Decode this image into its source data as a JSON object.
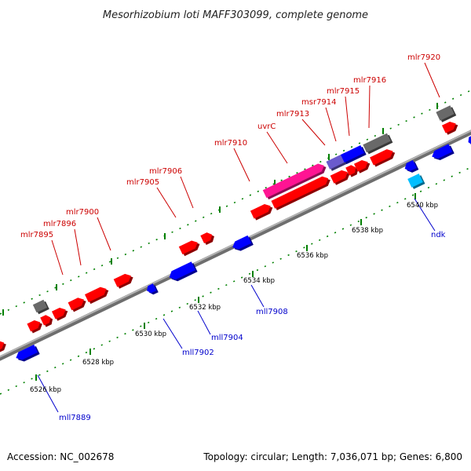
{
  "title": "Mesorhizobium loti MAFF303099, complete genome",
  "footer": {
    "accession": "Accession: NC_002678",
    "topology": "Topology: circular; Length: 7,036,071 bp; Genes: 6,800"
  },
  "colors": {
    "forward_gene": "#ff0000",
    "reverse_gene": "#0000ff",
    "forward_label": "#cc0000",
    "reverse_label": "#0000cc",
    "uvrC": "#ff1493",
    "hypothetical": "#696969",
    "ndk": "#00bfff",
    "purple_gene": "#6a5acd",
    "backbone": "#808080",
    "tick": "#008000"
  },
  "scale": {
    "unit": "kbp",
    "labels": [
      "6526 kbp",
      "6528 kbp",
      "6530 kbp",
      "6532 kbp",
      "6534 kbp",
      "6536 kbp",
      "6538 kbp",
      "6540 kbp"
    ]
  },
  "labels_forward": [
    "mlr7895",
    "mlr7896",
    "mlr7900",
    "mlr7905",
    "mlr7906",
    "mlr7910",
    "uvrC",
    "mlr7913",
    "msr7914",
    "mlr7915",
    "mlr7916",
    "mlr7920"
  ],
  "labels_reverse": [
    "mll7889",
    "mll7902",
    "mll7904",
    "mll7908",
    "ndk"
  ]
}
